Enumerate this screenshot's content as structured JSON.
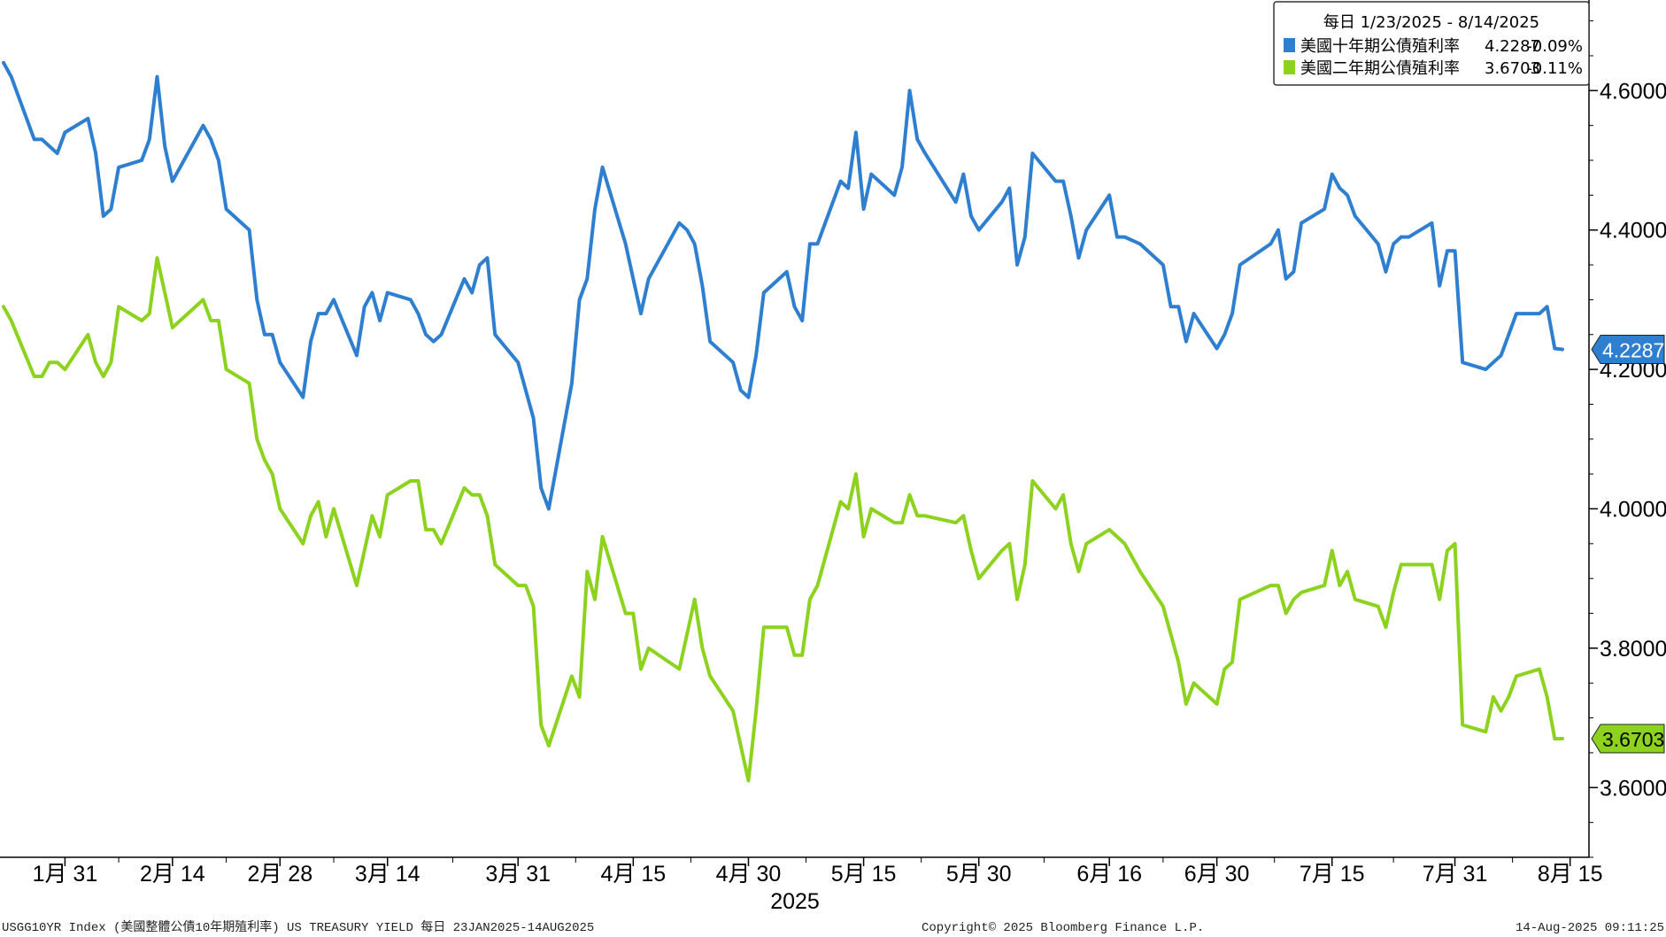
{
  "chart_data": {
    "type": "line",
    "x": [
      "2025-01-23",
      "2025-01-24",
      "2025-01-27",
      "2025-01-28",
      "2025-01-29",
      "2025-01-30",
      "2025-01-31",
      "2025-02-03",
      "2025-02-04",
      "2025-02-05",
      "2025-02-06",
      "2025-02-07",
      "2025-02-10",
      "2025-02-11",
      "2025-02-12",
      "2025-02-13",
      "2025-02-14",
      "2025-02-18",
      "2025-02-19",
      "2025-02-20",
      "2025-02-21",
      "2025-02-24",
      "2025-02-25",
      "2025-02-26",
      "2025-02-27",
      "2025-02-28",
      "2025-03-03",
      "2025-03-04",
      "2025-03-05",
      "2025-03-06",
      "2025-03-07",
      "2025-03-10",
      "2025-03-11",
      "2025-03-12",
      "2025-03-13",
      "2025-03-14",
      "2025-03-17",
      "2025-03-18",
      "2025-03-19",
      "2025-03-20",
      "2025-03-21",
      "2025-03-24",
      "2025-03-25",
      "2025-03-26",
      "2025-03-27",
      "2025-03-28",
      "2025-03-31",
      "2025-04-01",
      "2025-04-02",
      "2025-04-03",
      "2025-04-04",
      "2025-04-07",
      "2025-04-08",
      "2025-04-09",
      "2025-04-10",
      "2025-04-11",
      "2025-04-14",
      "2025-04-15",
      "2025-04-16",
      "2025-04-17",
      "2025-04-21",
      "2025-04-22",
      "2025-04-23",
      "2025-04-24",
      "2025-04-25",
      "2025-04-28",
      "2025-04-29",
      "2025-04-30",
      "2025-05-01",
      "2025-05-02",
      "2025-05-05",
      "2025-05-06",
      "2025-05-07",
      "2025-05-08",
      "2025-05-09",
      "2025-05-12",
      "2025-05-13",
      "2025-05-14",
      "2025-05-15",
      "2025-05-16",
      "2025-05-19",
      "2025-05-20",
      "2025-05-21",
      "2025-05-22",
      "2025-05-23",
      "2025-05-27",
      "2025-05-28",
      "2025-05-29",
      "2025-05-30",
      "2025-06-02",
      "2025-06-03",
      "2025-06-04",
      "2025-06-05",
      "2025-06-06",
      "2025-06-09",
      "2025-06-10",
      "2025-06-11",
      "2025-06-12",
      "2025-06-13",
      "2025-06-16",
      "2025-06-17",
      "2025-06-18",
      "2025-06-20",
      "2025-06-23",
      "2025-06-24",
      "2025-06-25",
      "2025-06-26",
      "2025-06-27",
      "2025-06-30",
      "2025-07-01",
      "2025-07-02",
      "2025-07-03",
      "2025-07-07",
      "2025-07-08",
      "2025-07-09",
      "2025-07-10",
      "2025-07-11",
      "2025-07-14",
      "2025-07-15",
      "2025-07-16",
      "2025-07-17",
      "2025-07-18",
      "2025-07-21",
      "2025-07-22",
      "2025-07-23",
      "2025-07-24",
      "2025-07-25",
      "2025-07-28",
      "2025-07-29",
      "2025-07-30",
      "2025-07-31",
      "2025-08-01",
      "2025-08-04",
      "2025-08-05",
      "2025-08-06",
      "2025-08-07",
      "2025-08-08",
      "2025-08-11",
      "2025-08-12",
      "2025-08-13",
      "2025-08-14"
    ],
    "series": [
      {
        "name": "美國十年期公債殖利率",
        "color": "#2f7fd0",
        "last": "4.2287",
        "change": "-0.09%",
        "values": [
          4.64,
          4.62,
          4.53,
          4.53,
          4.52,
          4.51,
          4.54,
          4.56,
          4.51,
          4.42,
          4.43,
          4.49,
          4.5,
          4.53,
          4.62,
          4.52,
          4.47,
          4.55,
          4.53,
          4.5,
          4.43,
          4.4,
          4.3,
          4.25,
          4.25,
          4.21,
          4.16,
          4.24,
          4.28,
          4.28,
          4.3,
          4.22,
          4.29,
          4.31,
          4.27,
          4.31,
          4.3,
          4.28,
          4.25,
          4.24,
          4.25,
          4.33,
          4.31,
          4.35,
          4.36,
          4.25,
          4.21,
          4.17,
          4.13,
          4.03,
          4.0,
          4.18,
          4.3,
          4.33,
          4.43,
          4.49,
          4.38,
          4.33,
          4.28,
          4.33,
          4.41,
          4.4,
          4.38,
          4.32,
          4.24,
          4.21,
          4.17,
          4.16,
          4.22,
          4.31,
          4.34,
          4.29,
          4.27,
          4.38,
          4.38,
          4.47,
          4.46,
          4.54,
          4.43,
          4.48,
          4.45,
          4.49,
          4.6,
          4.53,
          4.51,
          4.44,
          4.48,
          4.42,
          4.4,
          4.44,
          4.46,
          4.35,
          4.39,
          4.51,
          4.47,
          4.47,
          4.42,
          4.36,
          4.4,
          4.45,
          4.39,
          4.39,
          4.38,
          4.35,
          4.29,
          4.29,
          4.24,
          4.28,
          4.23,
          4.25,
          4.28,
          4.35,
          4.38,
          4.4,
          4.33,
          4.34,
          4.41,
          4.43,
          4.48,
          4.46,
          4.45,
          4.42,
          4.38,
          4.34,
          4.38,
          4.39,
          4.39,
          4.41,
          4.32,
          4.37,
          4.37,
          4.21,
          4.2,
          4.21,
          4.22,
          4.25,
          4.28,
          4.28,
          4.29,
          4.23,
          4.2287
        ]
      },
      {
        "name": "美國二年期公債殖利率",
        "color": "#8cd21e",
        "last": "3.6703",
        "change": "-0.11%",
        "values": [
          4.29,
          4.27,
          4.19,
          4.19,
          4.21,
          4.21,
          4.2,
          4.25,
          4.21,
          4.19,
          4.21,
          4.29,
          4.27,
          4.28,
          4.36,
          4.31,
          4.26,
          4.3,
          4.27,
          4.27,
          4.2,
          4.18,
          4.1,
          4.07,
          4.05,
          4.0,
          3.95,
          3.99,
          4.01,
          3.96,
          4.0,
          3.89,
          3.94,
          3.99,
          3.96,
          4.02,
          4.04,
          4.04,
          3.97,
          3.97,
          3.95,
          4.03,
          4.02,
          4.02,
          3.99,
          3.92,
          3.89,
          3.89,
          3.86,
          3.69,
          3.66,
          3.76,
          3.73,
          3.91,
          3.87,
          3.96,
          3.85,
          3.85,
          3.77,
          3.8,
          3.77,
          3.82,
          3.87,
          3.8,
          3.76,
          3.71,
          3.66,
          3.61,
          3.71,
          3.83,
          3.83,
          3.79,
          3.79,
          3.87,
          3.89,
          4.01,
          4.0,
          4.05,
          3.96,
          4.0,
          3.98,
          3.98,
          4.02,
          3.99,
          3.99,
          3.98,
          3.99,
          3.94,
          3.9,
          3.94,
          3.95,
          3.87,
          3.92,
          4.04,
          4.0,
          4.02,
          3.95,
          3.91,
          3.95,
          3.97,
          3.96,
          3.95,
          3.91,
          3.86,
          3.82,
          3.78,
          3.72,
          3.75,
          3.72,
          3.77,
          3.78,
          3.87,
          3.89,
          3.89,
          3.85,
          3.87,
          3.88,
          3.89,
          3.94,
          3.89,
          3.91,
          3.87,
          3.86,
          3.83,
          3.88,
          3.92,
          3.92,
          3.92,
          3.87,
          3.94,
          3.95,
          3.69,
          3.68,
          3.73,
          3.71,
          3.73,
          3.76,
          3.77,
          3.73,
          3.67,
          3.6703
        ]
      }
    ],
    "xticks": [
      {
        "label": "1月 31",
        "date": "2025-01-31"
      },
      {
        "label": "2月 14",
        "date": "2025-02-14"
      },
      {
        "label": "2月 28",
        "date": "2025-02-28"
      },
      {
        "label": "3月 14",
        "date": "2025-03-14"
      },
      {
        "label": "3月 31",
        "date": "2025-03-31"
      },
      {
        "label": "4月 15",
        "date": "2025-04-15"
      },
      {
        "label": "4月 30",
        "date": "2025-04-30"
      },
      {
        "label": "5月 15",
        "date": "2025-05-15"
      },
      {
        "label": "5月 30",
        "date": "2025-05-30"
      },
      {
        "label": "6月 16",
        "date": "2025-06-16"
      },
      {
        "label": "6月 30",
        "date": "2025-06-30"
      },
      {
        "label": "7月 15",
        "date": "2025-07-15"
      },
      {
        "label": "7月 31",
        "date": "2025-07-31"
      },
      {
        "label": "8月 15",
        "date": "2025-08-15"
      }
    ],
    "xlabel": "2025",
    "yticks": [
      "4.6000",
      "4.4000",
      "4.2000",
      "4.0000",
      "3.8000",
      "3.6000"
    ],
    "ylim": [
      3.5,
      4.73
    ],
    "y_axis_position": "right",
    "grid": false,
    "legend_position": "top-right",
    "legend_title": "每日 1/23/2025 - 8/14/2025",
    "footer_left": "USGG10YR Index (美國整體公債10年期殖利率) US TREASURY YIELD 每日 23JAN2025-14AUG2025",
    "footer_center": "Copyright© 2025 Bloomberg Finance L.P.",
    "footer_right": "14-Aug-2025 09:11:25"
  }
}
